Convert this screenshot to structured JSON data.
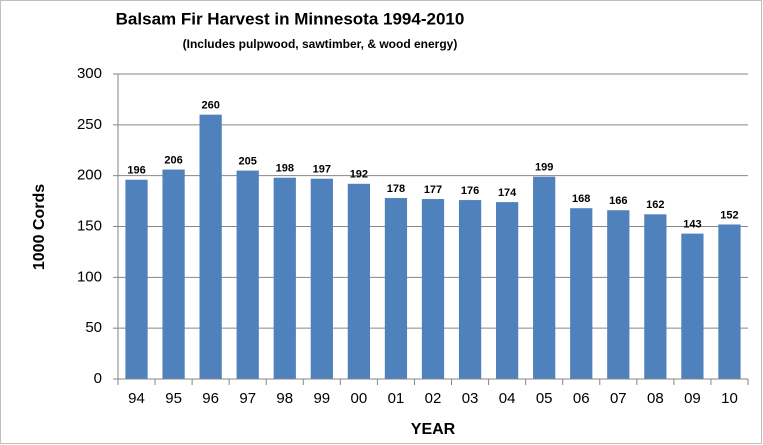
{
  "chart_data": {
    "type": "bar",
    "title": "Balsam Fir Harvest in Minnesota 1994-2010",
    "subtitle": "(Includes pulpwood, sawtimber, & wood energy)",
    "x_label": "YEAR",
    "y_label": "1000 Cords",
    "categories": [
      "94",
      "95",
      "96",
      "97",
      "98",
      "99",
      "00",
      "01",
      "02",
      "03",
      "04",
      "05",
      "06",
      "07",
      "08",
      "09",
      "10"
    ],
    "values": [
      196,
      206,
      260,
      205,
      198,
      197,
      192,
      178,
      177,
      176,
      174,
      199,
      168,
      166,
      162,
      143,
      152
    ],
    "color": "#4f81bd",
    "ylim": [
      0,
      300
    ],
    "yticks": [
      0,
      50,
      100,
      150,
      200,
      250,
      300
    ],
    "grid": true
  }
}
